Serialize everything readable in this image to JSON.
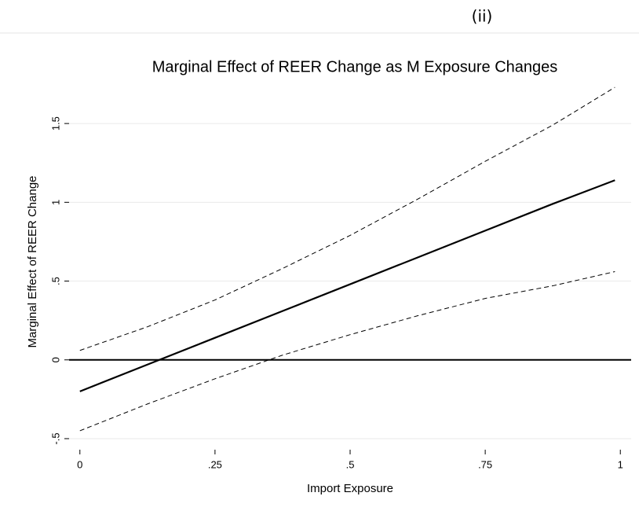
{
  "panel_label": "(ii)",
  "chart_data": {
    "type": "line",
    "title": "Marginal Effect of REER Change as M Exposure Changes",
    "x_label": "Import Exposure",
    "y_label": "Marginal Effect of REER Change",
    "x": [
      0,
      0.125,
      0.25,
      0.375,
      0.5,
      0.625,
      0.75,
      0.875,
      0.99
    ],
    "series": [
      {
        "color": "#000000",
        "dashed": false,
        "values": [
          -0.2,
          -0.03,
          0.14,
          0.31,
          0.48,
          0.65,
          0.82,
          0.99,
          1.14
        ]
      },
      {
        "color": "#000000",
        "dashed": true,
        "values": [
          0.06,
          0.21,
          0.38,
          0.58,
          0.79,
          1.02,
          1.26,
          1.49,
          1.73
        ]
      },
      {
        "color": "#000000",
        "dashed": true,
        "values": [
          -0.45,
          -0.28,
          -0.12,
          0.03,
          0.16,
          0.28,
          0.39,
          0.47,
          0.56
        ]
      }
    ],
    "yline": 0,
    "xlim": [
      -0.02,
      1.02
    ],
    "ylim": [
      -0.57,
      1.76
    ],
    "xticks": [
      0,
      {
        "value": 0.25,
        "label": ".25"
      },
      {
        "value": 0.5,
        "label": ".5"
      },
      {
        "value": 0.75,
        "label": ".75"
      },
      1
    ],
    "yticks": [
      {
        "value": -0.5,
        "label": "-.5"
      },
      0,
      {
        "value": 0.5,
        "label": ".5"
      },
      1,
      {
        "value": 1.5,
        "label": "1.5"
      }
    ],
    "grid": true
  }
}
